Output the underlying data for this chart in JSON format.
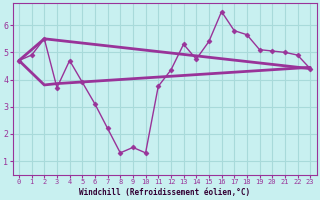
{
  "bg_color": "#c8f0f0",
  "grid_color": "#a8dada",
  "line_color": "#993399",
  "xlabel": "Windchill (Refroidissement éolien,°C)",
  "xlim": [
    -0.5,
    23.5
  ],
  "ylim": [
    0.5,
    6.8
  ],
  "yticks": [
    1,
    2,
    3,
    4,
    5,
    6
  ],
  "xticks": [
    0,
    1,
    2,
    3,
    4,
    5,
    6,
    7,
    8,
    9,
    10,
    11,
    12,
    13,
    14,
    15,
    16,
    17,
    18,
    19,
    20,
    21,
    22,
    23
  ],
  "line1_x": [
    0,
    1,
    2,
    3,
    4,
    5,
    6,
    7,
    8,
    9,
    10,
    11,
    12,
    13,
    14,
    15,
    16,
    17,
    18,
    19,
    20,
    21,
    22,
    23
  ],
  "line1_y": [
    4.7,
    4.9,
    5.5,
    3.7,
    4.7,
    3.9,
    3.1,
    2.2,
    1.3,
    1.5,
    1.3,
    3.75,
    4.35,
    5.3,
    4.75,
    5.4,
    6.5,
    5.8,
    5.65,
    5.1,
    5.05,
    5.0,
    4.9,
    4.4
  ],
  "line2_x": [
    0,
    2,
    23
  ],
  "line2_y": [
    4.7,
    5.5,
    4.4
  ],
  "line3_x": [
    0,
    2,
    3,
    23
  ],
  "line3_y": [
    4.7,
    3.8,
    3.85,
    4.45
  ],
  "spine_color": "#993399",
  "tick_color": "#993399",
  "label_color": "#330033"
}
